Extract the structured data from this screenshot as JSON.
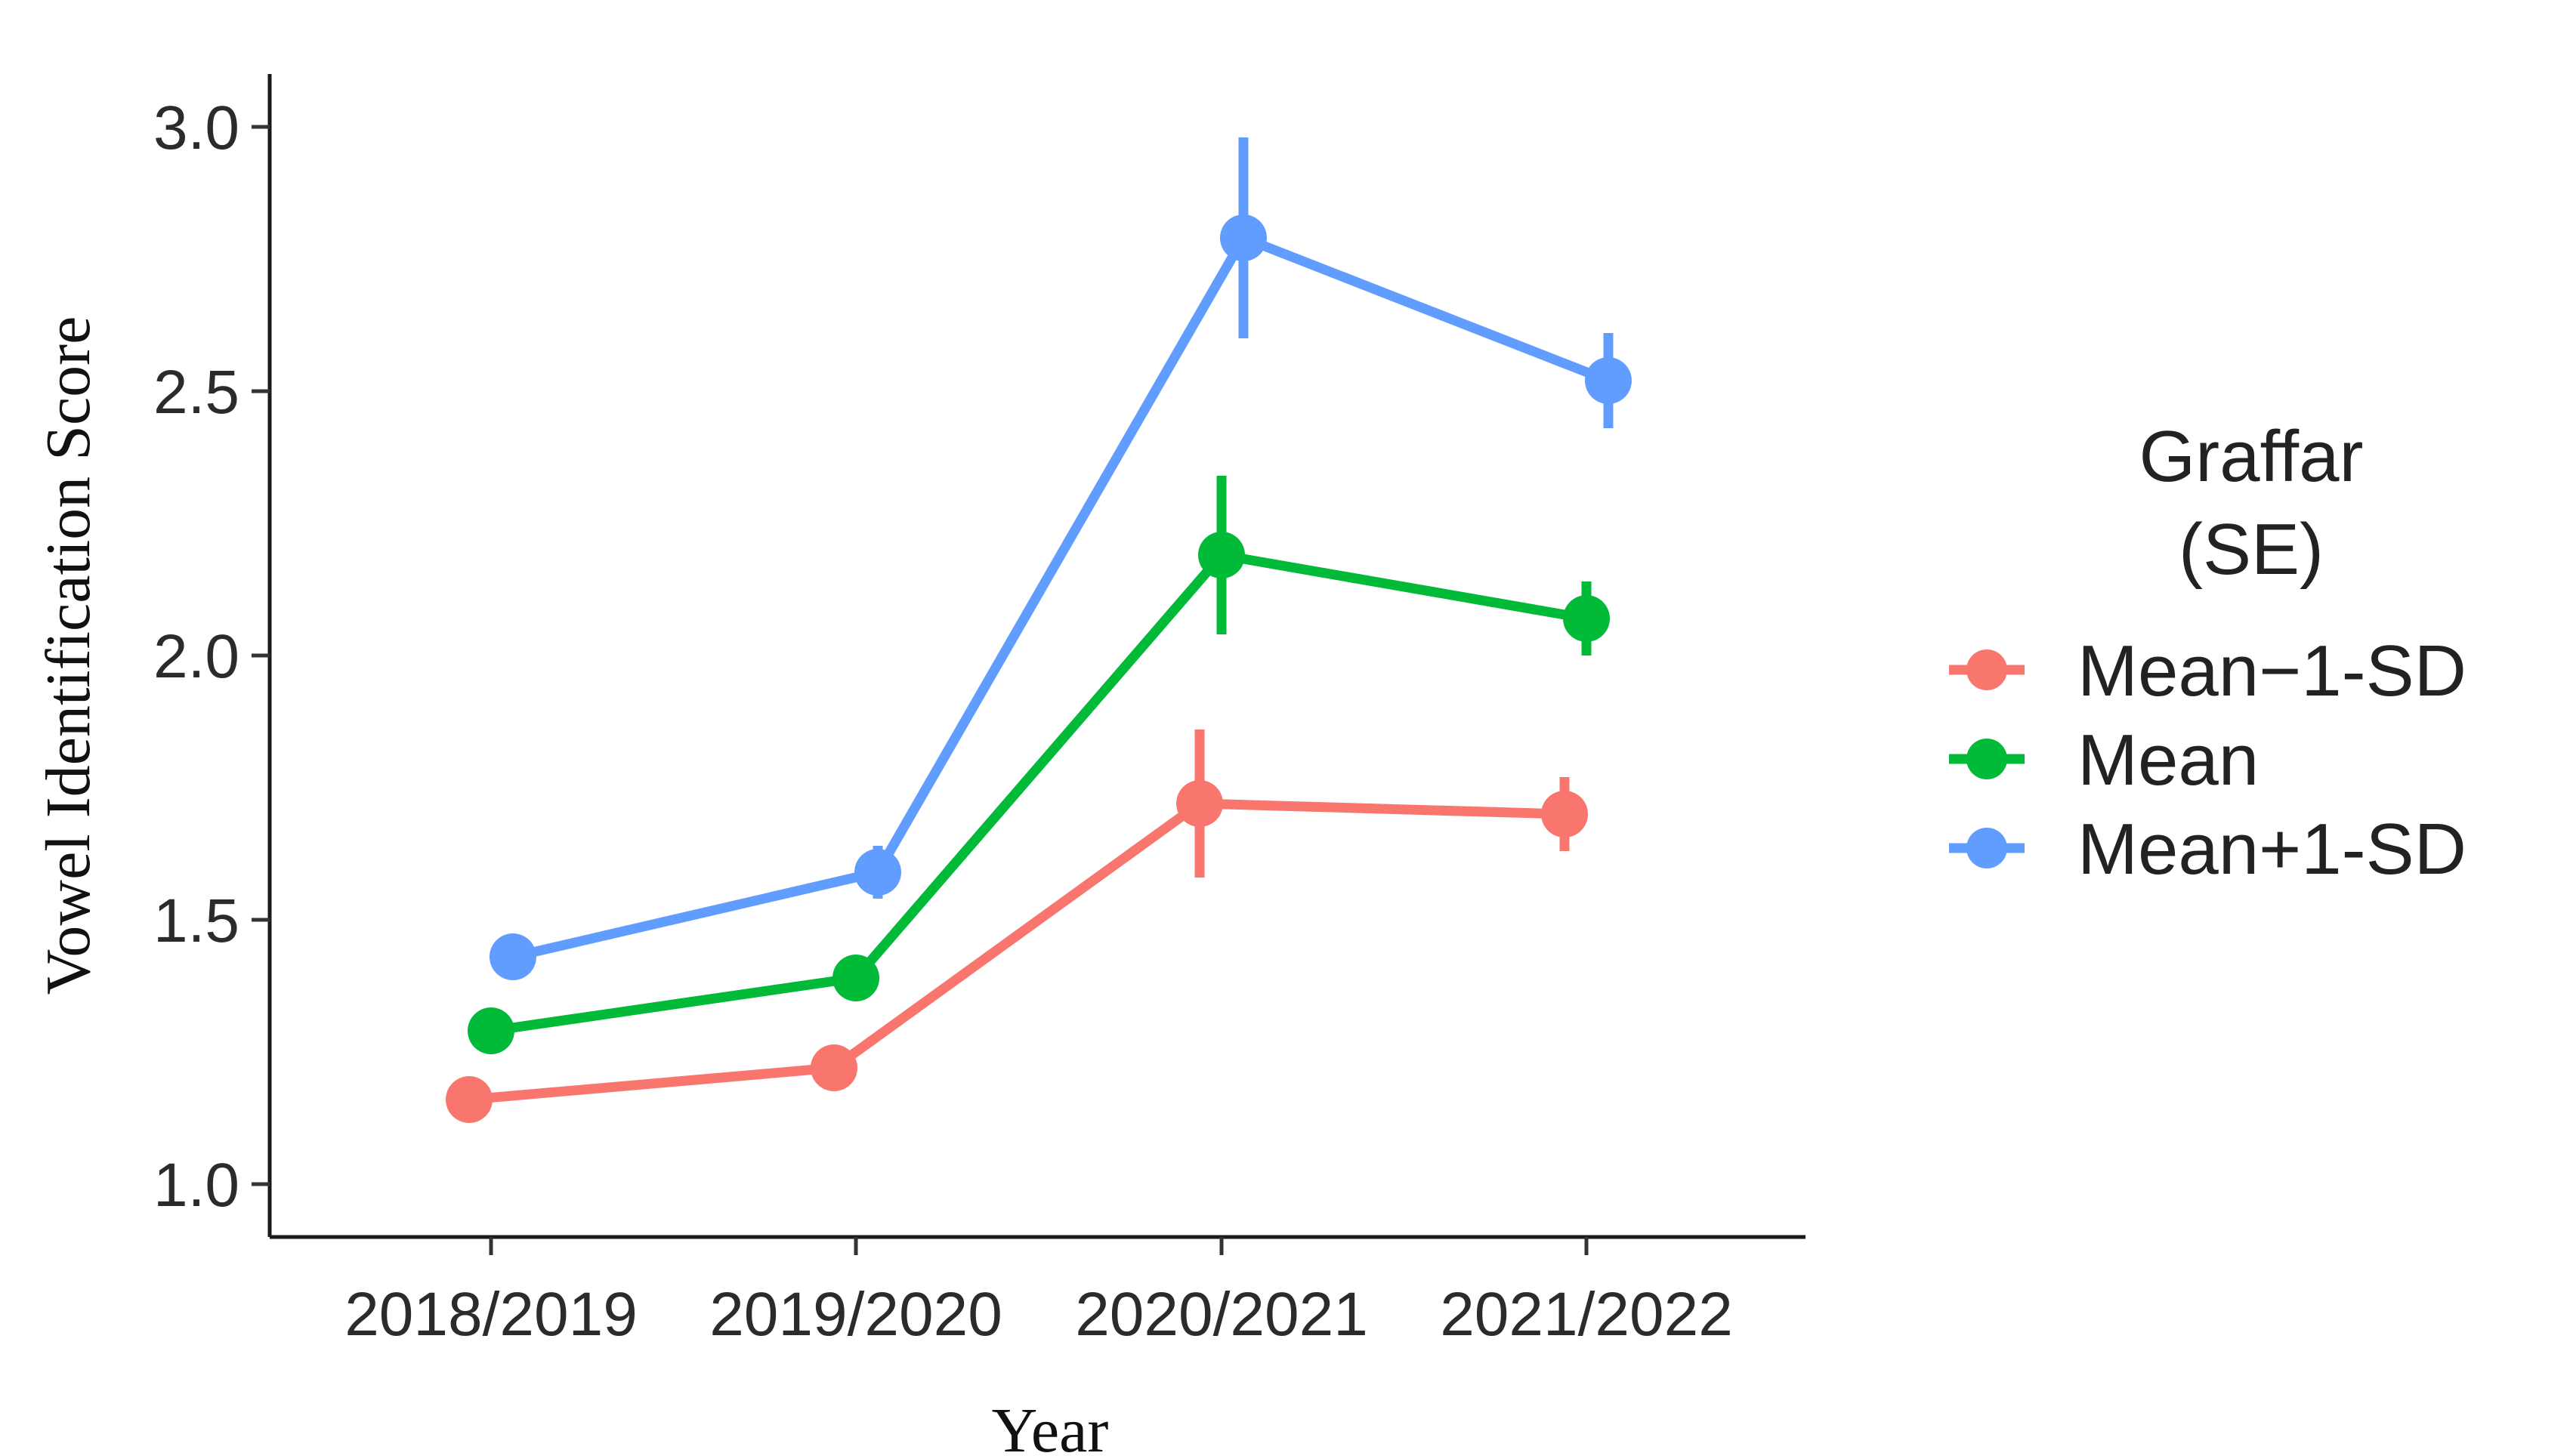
{
  "chart_data": {
    "type": "line",
    "xlabel": "Year",
    "ylabel": "Vowel Identification Score",
    "categories": [
      "2018/2019",
      "2019/2020",
      "2020/2021",
      "2021/2022"
    ],
    "ylim": [
      0.9,
      3.1
    ],
    "yticks": [
      1.0,
      1.5,
      2.0,
      2.5,
      3.0
    ],
    "ytick_labels": [
      "1.0",
      "1.5",
      "2.0",
      "2.5",
      "3.0"
    ],
    "grid": false,
    "error_bars": "SE",
    "legend": {
      "title_lines": [
        "Graffar",
        "(SE)"
      ],
      "placement": "right"
    },
    "series": [
      {
        "name": "Mean−1-SD",
        "color": "#F8766D",
        "dodge": -0.06,
        "values": [
          1.16,
          1.22,
          1.72,
          1.7
        ],
        "errors": [
          0.03,
          0.04,
          0.14,
          0.07
        ]
      },
      {
        "name": "Mean",
        "color": "#00BA38",
        "dodge": 0.0,
        "values": [
          1.29,
          1.39,
          2.19,
          2.07
        ],
        "errors": [
          0.03,
          0.04,
          0.15,
          0.07
        ]
      },
      {
        "name": "Mean+1-SD",
        "color": "#619CFF",
        "dodge": 0.06,
        "values": [
          1.43,
          1.59,
          2.79,
          2.52
        ],
        "errors": [
          0.04,
          0.05,
          0.19,
          0.09
        ]
      }
    ]
  }
}
